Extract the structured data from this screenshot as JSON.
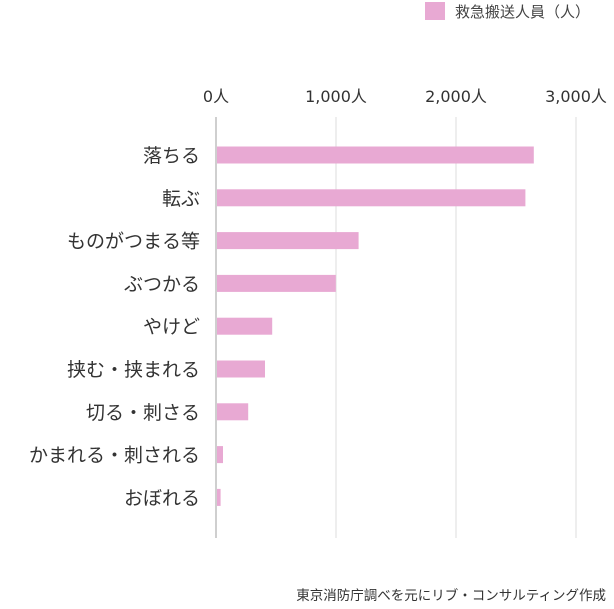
{
  "chart_data": {
    "type": "bar",
    "orientation": "horizontal",
    "categories": [
      "落ちる",
      "転ぶ",
      "ものがつまる等",
      "ぶつかる",
      "やけど",
      "挟む・挟まれる",
      "切る・刺さる",
      "かまれる・刺される",
      "おぼれる"
    ],
    "series": [
      {
        "name": "救急搬送人員（人）",
        "values": [
          2640,
          2570,
          1180,
          990,
          460,
          400,
          260,
          50,
          30
        ],
        "color": "#e8a9d3"
      }
    ],
    "xticks": [
      "0人",
      "1,000人",
      "2,000人",
      "3,000人"
    ],
    "xlim": [
      0,
      3000
    ],
    "grid": true,
    "legend": "top-right"
  },
  "source_note": "東京消防庁調べを元にリブ・コンサルティング作成",
  "colors": {
    "bar": "#e8a9d3",
    "grid": "#e2e2e2",
    "axis": "#cfcfcf"
  }
}
